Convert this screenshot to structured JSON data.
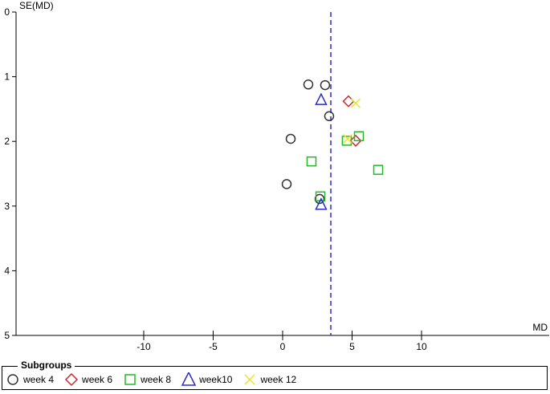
{
  "chart_data": {
    "type": "scatter",
    "title": "",
    "xlabel": "MD",
    "ylabel": "SE(MD)",
    "xlim": [
      -20.3,
      19.1
    ],
    "ylim": [
      5,
      0
    ],
    "y_inverted": true,
    "x_ticks": [
      -10,
      -5,
      0,
      5,
      10
    ],
    "y_ticks": [
      0,
      1,
      2,
      3,
      4,
      5
    ],
    "grid": false,
    "reference_line": {
      "x": 3.47,
      "style": "dashed",
      "color": "#2b2bb8"
    },
    "legend": {
      "title": "Subgroups",
      "position": "bottom"
    },
    "series": [
      {
        "name": "week 4",
        "marker": "circle",
        "color": "#333333",
        "points": [
          [
            1.85,
            1.12
          ],
          [
            3.06,
            1.13
          ],
          [
            3.35,
            1.61
          ],
          [
            0.58,
            1.96
          ],
          [
            0.29,
            2.66
          ],
          [
            2.66,
            2.89
          ]
        ]
      },
      {
        "name": "week 6",
        "marker": "diamond",
        "color": "#cc2a2a",
        "points": [
          [
            4.74,
            1.38
          ],
          [
            5.26,
            1.99
          ]
        ]
      },
      {
        "name": "week 8",
        "marker": "square",
        "color": "#22bb22",
        "points": [
          [
            2.08,
            2.31
          ],
          [
            4.62,
            1.99
          ],
          [
            5.49,
            1.92
          ],
          [
            6.88,
            2.44
          ],
          [
            2.72,
            2.85
          ]
        ]
      },
      {
        "name": "week10",
        "marker": "triangle",
        "color": "#2b2bcc",
        "points": [
          [
            2.77,
            1.36
          ],
          [
            2.77,
            2.98
          ]
        ]
      },
      {
        "name": "week 12",
        "marker": "x",
        "color": "#e6e620",
        "points": [
          [
            5.26,
            1.41
          ],
          [
            4.68,
            1.96
          ]
        ]
      }
    ]
  },
  "legend": {
    "title": "Subgroups",
    "items": [
      {
        "label": "week 4",
        "marker": "circle",
        "color": "#333333"
      },
      {
        "label": "week 6",
        "marker": "diamond",
        "color": "#cc2a2a"
      },
      {
        "label": "week 8",
        "marker": "square",
        "color": "#22bb22"
      },
      {
        "label": "week10",
        "marker": "triangle",
        "color": "#2b2bcc"
      },
      {
        "label": "week 12",
        "marker": "x",
        "color": "#e6e620"
      }
    ]
  }
}
